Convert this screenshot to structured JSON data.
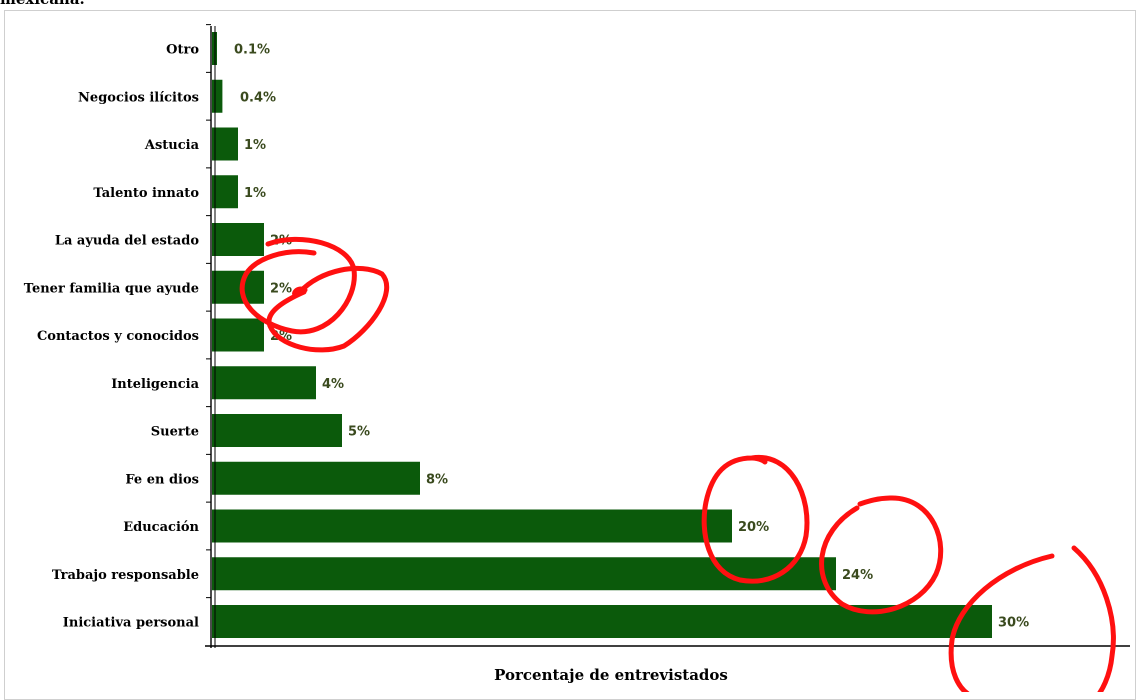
{
  "page": {
    "heading": "mexicana."
  },
  "chart_data": {
    "type": "bar",
    "orientation": "horizontal",
    "categories": [
      "Otro",
      "Negocios ilícitos",
      "Astucia",
      "Talento innato",
      "La ayuda del estado",
      "Tener familia que ayude",
      "Contactos y conocidos",
      "Inteligencia",
      "Suerte",
      "Fe en dios",
      "Educación",
      "Trabajo responsable",
      "Iniciativa personal"
    ],
    "values": [
      0.1,
      0.4,
      1,
      1,
      2,
      2,
      2,
      4,
      5,
      8,
      20,
      24,
      30
    ],
    "value_labels": [
      "0.1%",
      "0.4%",
      "1%",
      "1%",
      "2%",
      "2%",
      "2%",
      "4%",
      "5%",
      "8%",
      "20%",
      "24%",
      "30%"
    ],
    "title": "",
    "xlabel": "Porcentaje de entrevistados",
    "ylabel": "",
    "xlim": [
      0,
      35
    ],
    "grid": false,
    "legend": "none",
    "colors": {
      "bar": "#0b5a0b",
      "value_label": "#3a4a1e",
      "annotation": "#ff0000"
    },
    "annotations": [
      "red hand-drawn circles around the 2%, 20%, 24% and 30% bars"
    ]
  }
}
